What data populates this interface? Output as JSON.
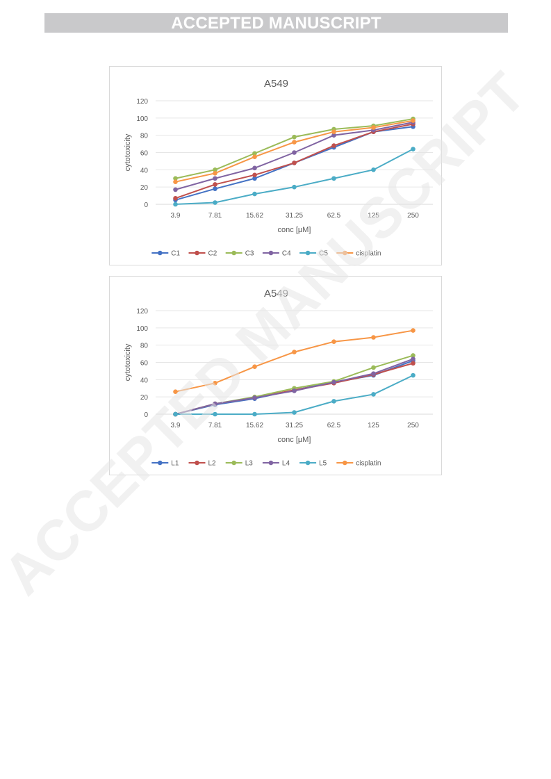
{
  "header": {
    "banner_text": "ACCEPTED MANUSCRIPT"
  },
  "watermark": {
    "text": "ACCEPTED MANUSCRIPT",
    "color": "#e6e6e6"
  },
  "chart_data": [
    {
      "type": "line",
      "title": "A549",
      "xlabel": "conc [µM]",
      "ylabel": "cytotoxicity",
      "categories": [
        "3.9",
        "7.81",
        "15.62",
        "31.25",
        "62.5",
        "125",
        "250"
      ],
      "yticks": [
        "0",
        "20",
        "40",
        "60",
        "80",
        "100",
        "120"
      ],
      "ylim": [
        0,
        120
      ],
      "grid": true,
      "legend_position": "bottom",
      "series": [
        {
          "name": "C1",
          "color": "#4472c4",
          "values": [
            5,
            18,
            30,
            48,
            66,
            84,
            90
          ]
        },
        {
          "name": "C2",
          "color": "#c0504d",
          "values": [
            7,
            23,
            34,
            48,
            68,
            84,
            93
          ]
        },
        {
          "name": "C3",
          "color": "#9bbb59",
          "values": [
            30,
            40,
            59,
            78,
            87,
            91,
            99
          ]
        },
        {
          "name": "C4",
          "color": "#8064a2",
          "values": [
            17,
            30,
            42,
            60,
            80,
            86,
            95
          ]
        },
        {
          "name": "C5",
          "color": "#4bacc6",
          "values": [
            0,
            2,
            12,
            20,
            30,
            40,
            64
          ]
        },
        {
          "name": "cisplatin",
          "color": "#f79646",
          "values": [
            26,
            36,
            55,
            72,
            84,
            89,
            97
          ]
        }
      ]
    },
    {
      "type": "line",
      "title": "A549",
      "xlabel": "conc [µM]",
      "ylabel": "cytotoxicity",
      "categories": [
        "3.9",
        "7.81",
        "15.62",
        "31.25",
        "62.5",
        "125",
        "250"
      ],
      "yticks": [
        "0",
        "20",
        "40",
        "60",
        "80",
        "100",
        "120"
      ],
      "ylim": [
        0,
        120
      ],
      "grid": true,
      "legend_position": "bottom",
      "series": [
        {
          "name": "L1",
          "color": "#4472c4",
          "values": [
            0,
            11,
            18,
            28,
            37,
            45,
            62
          ]
        },
        {
          "name": "L2",
          "color": "#c0504d",
          "values": [
            0,
            12,
            19,
            28,
            36,
            46,
            59
          ]
        },
        {
          "name": "L3",
          "color": "#9bbb59",
          "values": [
            0,
            12,
            20,
            30,
            38,
            54,
            68
          ]
        },
        {
          "name": "L4",
          "color": "#8064a2",
          "values": [
            0,
            12,
            19,
            27,
            37,
            47,
            64
          ]
        },
        {
          "name": "L5",
          "color": "#4bacc6",
          "values": [
            0,
            0,
            0,
            2,
            15,
            23,
            45
          ]
        },
        {
          "name": "cisplatin",
          "color": "#f79646",
          "values": [
            26,
            36,
            55,
            72,
            84,
            89,
            97
          ]
        }
      ]
    }
  ]
}
